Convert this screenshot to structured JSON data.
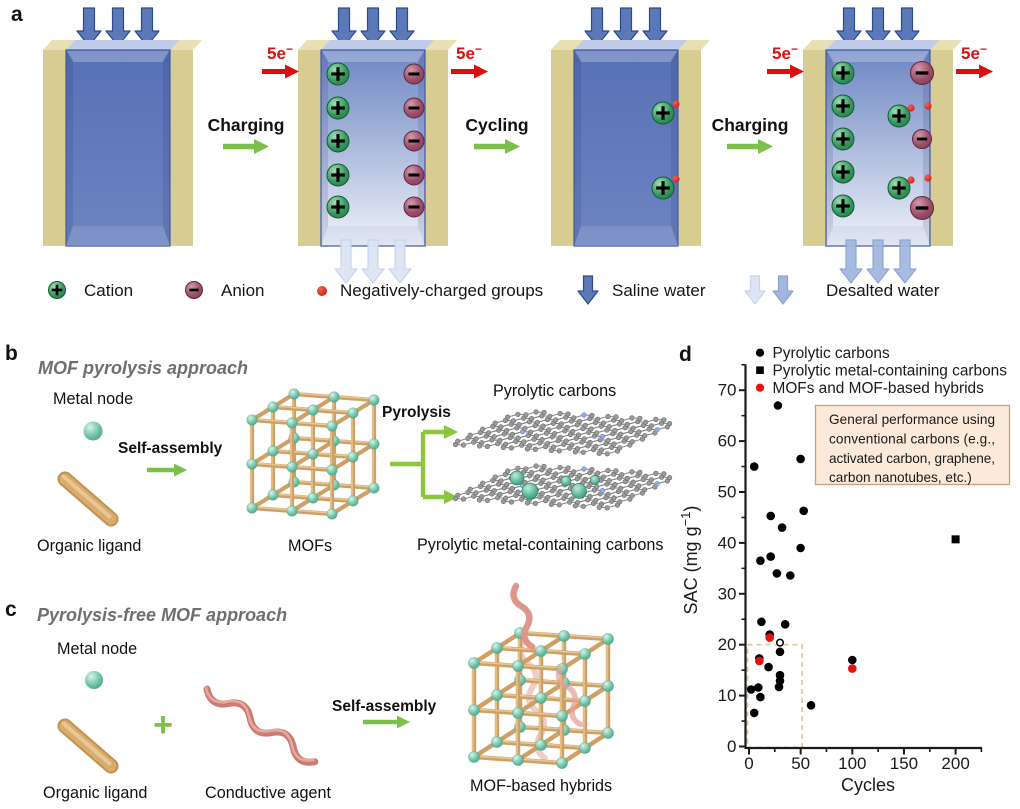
{
  "figure": {
    "background": "#ffffff",
    "panel_letters": {
      "a": "a",
      "b": "b",
      "c": "c",
      "d": "d"
    }
  },
  "panel_a": {
    "steps": {
      "charging1": "Charging",
      "cycling": "Cycling",
      "charging2": "Charging"
    },
    "electron_label": {
      "base": "5e",
      "sup": "−",
      "full": "5e−"
    },
    "legend": [
      {
        "icon": "cation-icon",
        "label": "Cation"
      },
      {
        "icon": "anion-icon",
        "label": "Anion"
      },
      {
        "icon": "negative-group-icon",
        "label": "Negatively-charged groups"
      },
      {
        "icon": "saline-water-arrow-icon",
        "label": "Saline water"
      },
      {
        "icon": "desalted-water-arrows-icon",
        "label": "Desalted water"
      }
    ]
  },
  "panel_b": {
    "title": "MOF pyrolysis approach",
    "labels": {
      "metal_node": "Metal node",
      "self_assembly": "Self-assembly",
      "organic_ligand": "Organic ligand",
      "mofs": "MOFs",
      "pyrolysis": "Pyrolysis",
      "pyrolytic_carbons": "Pyrolytic carbons",
      "pyrolytic_metal_carbons": "Pyrolytic metal-containing carbons"
    }
  },
  "panel_c": {
    "title": "Pyrolysis-free MOF approach",
    "labels": {
      "metal_node": "Metal node",
      "organic_ligand": "Organic ligand",
      "plus": "+",
      "conductive_agent": "Conductive agent",
      "self_assembly": "Self-assembly",
      "hybrids": "MOF-based hybrids"
    }
  },
  "chart_data": {
    "type": "scatter",
    "xlabel": "Cycles",
    "ylabel": "SAC (mg g−1)",
    "ylabel_parts": {
      "base": "SAC (mg g",
      "sup": "−1",
      "close": ")"
    },
    "xlim": [
      -5,
      225
    ],
    "ylim": [
      0,
      75
    ],
    "x_ticks": [
      0,
      50,
      100,
      150,
      200
    ],
    "x_minor_ticks": [
      25,
      75,
      125,
      175,
      225
    ],
    "y_ticks": [
      0,
      10,
      20,
      30,
      40,
      50,
      60,
      70
    ],
    "y_minor_ticks": [
      5,
      15,
      25,
      35,
      45,
      55,
      65,
      75
    ],
    "grid": false,
    "legend_position": "top-left",
    "series": [
      {
        "name": "Pyrolytic carbons",
        "marker": "circle",
        "color": "#000000",
        "points": [
          [
            5,
            55
          ],
          [
            28,
            67
          ],
          [
            50,
            56.5
          ],
          [
            21,
            45.3
          ],
          [
            32,
            43
          ],
          [
            53,
            46.3
          ],
          [
            11,
            36.5
          ],
          [
            21,
            37.3
          ],
          [
            27,
            34
          ],
          [
            40,
            33.6
          ],
          [
            50,
            39
          ],
          [
            12,
            24.5
          ],
          [
            35,
            24
          ],
          [
            20,
            22
          ],
          [
            30,
            18.6
          ],
          [
            10,
            17.3
          ],
          [
            19,
            15.6
          ],
          [
            30,
            14
          ],
          [
            30,
            12.9
          ],
          [
            29,
            11.7
          ],
          [
            2,
            11.2
          ],
          [
            9,
            11.6
          ],
          [
            11,
            9.7
          ],
          [
            5,
            6.6
          ],
          [
            60,
            8.1
          ],
          [
            100,
            17
          ]
        ]
      },
      {
        "name": "Pyrolytic metal-containing carbons",
        "marker": "square",
        "color": "#000000",
        "points": [
          [
            200,
            40.7
          ]
        ]
      },
      {
        "name": "MOFs and MOF-based hybrids",
        "marker": "circle",
        "color": "#e8100c",
        "points": [
          [
            20,
            21.4
          ],
          [
            10,
            16.8
          ],
          [
            100,
            15.3
          ]
        ]
      }
    ],
    "extra_points": [
      {
        "marker": "open-circle",
        "color": "#000000",
        "point": [
          30,
          20.4
        ]
      }
    ],
    "highlight_box": {
      "x": [
        0,
        50
      ],
      "y": [
        0,
        20
      ],
      "style": "dashed",
      "color": "#e3c29c"
    },
    "annotation": {
      "lines": [
        "General performance using",
        "conventional carbons (e.g.,",
        "activated carbon, graphene,",
        "carbon nanotubes, etc.)"
      ],
      "full_text": "General performance using conventional carbons (e.g., activated carbon, graphene, carbon nanotubes, etc.)",
      "fill": "#fbead9",
      "border": "#c9a07b"
    }
  },
  "colors": {
    "electrode_tan": "#d7cd92",
    "electrode_tan_top": "#e7e0b4",
    "channel_blue": "#5b75b8",
    "channel_edge": "#4a64a6",
    "channel_top_band": "#bfcbe7",
    "saline_arrow": "#5b79b9",
    "saline_arrow_edge": "#2c4a8e",
    "desalted_arrow_light": "#dde5f4",
    "desalted_arrow_mid": "#a3b7de",
    "green_arrow": "#7cbf4a",
    "red_accent": "#da1010",
    "cation_green": "#35995e",
    "anion_maroon": "#9c4f68",
    "neg_group_red": "#d91212",
    "mof_rod_tan": "#cfa065",
    "metal_node_teal": "#6ec4a8",
    "polymer_pink": "#c97b74",
    "graphene_gray": "#9a9a9a"
  }
}
